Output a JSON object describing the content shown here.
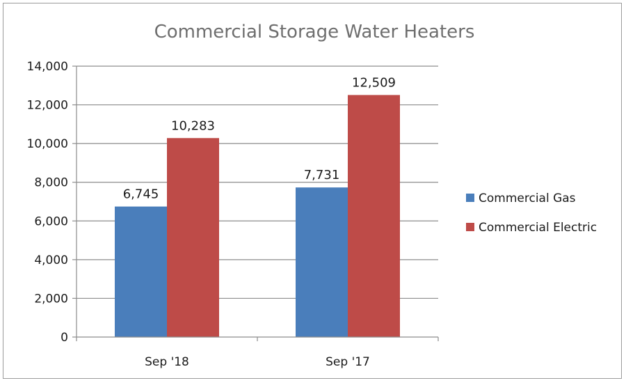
{
  "chart_data": {
    "type": "bar",
    "title": "Commercial Storage Water Heaters",
    "xlabel": "",
    "ylabel": "",
    "categories": [
      "Sep '18",
      "Sep '17"
    ],
    "series": [
      {
        "name": "Commercial Gas",
        "values": [
          6745,
          7731
        ],
        "labels": [
          "6,745",
          "7,731"
        ],
        "color": "#4a7ebb"
      },
      {
        "name": "Commercial Electric",
        "values": [
          10283,
          12509
        ],
        "labels": [
          "10,283",
          "12,509"
        ],
        "color": "#be4b48"
      }
    ],
    "ylim": [
      0,
      14000
    ],
    "yticks": [
      0,
      2000,
      4000,
      6000,
      8000,
      10000,
      12000,
      14000
    ],
    "ytick_labels": [
      "0",
      "2,000",
      "4,000",
      "6,000",
      "8,000",
      "10,000",
      "12,000",
      "14,000"
    ],
    "grid": true,
    "legend_position": "right"
  }
}
